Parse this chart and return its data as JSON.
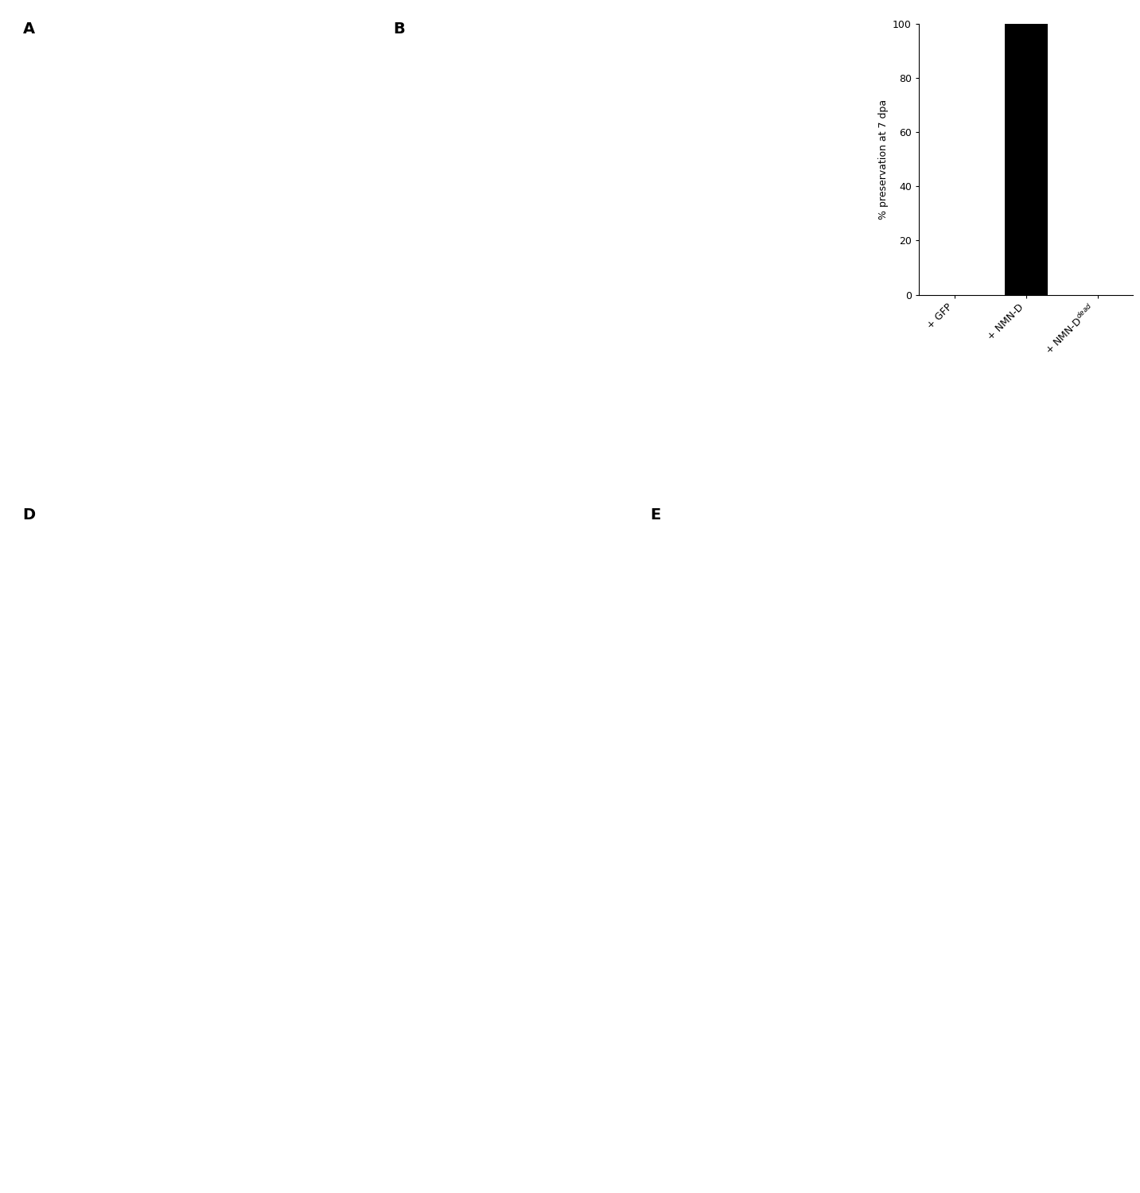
{
  "panel_C": {
    "categories": [
      "+ GFP",
      "+ NMN-D",
      "+ NMN-D$^{dead}$"
    ],
    "values": [
      0,
      100,
      0
    ],
    "bar_color": "#000000",
    "ylabel": "% preservation at 7 dpa",
    "ylim": [
      0,
      100
    ],
    "yticks": [
      0,
      20,
      40,
      60,
      80,
      100
    ],
    "bar_width": 0.6,
    "label_fontsize": 9,
    "tick_fontsize": 9,
    "ylabel_fontsize": 9
  },
  "figure_bg": "#ffffff",
  "panel_label_fontsize": 14,
  "panel_label_fontweight": "bold"
}
